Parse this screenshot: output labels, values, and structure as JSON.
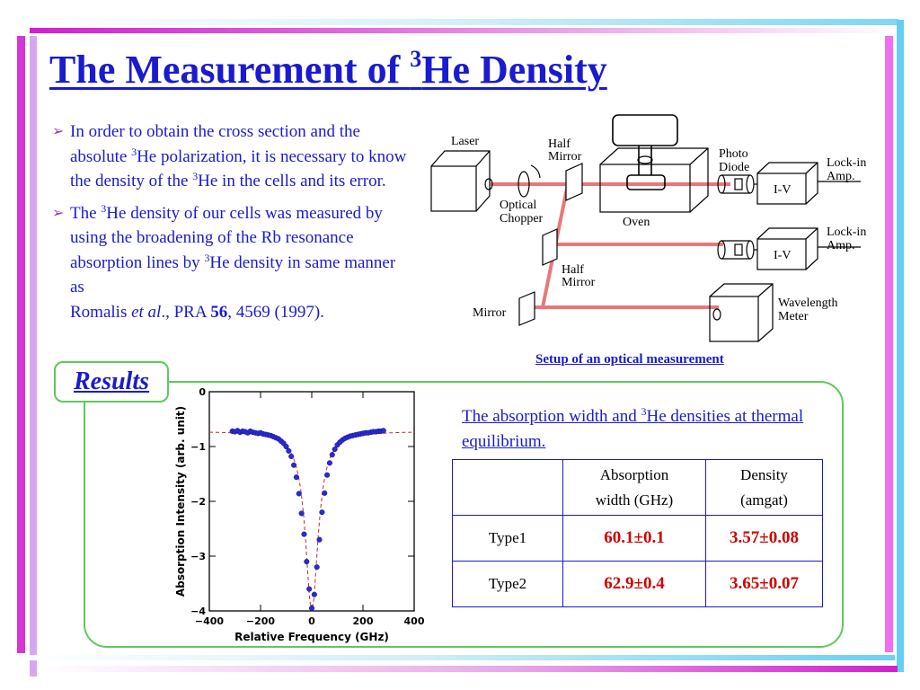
{
  "title": {
    "pre": "The Measurement of ",
    "sup": "3",
    "post": "He Density"
  },
  "bullets": [
    {
      "marker": "➢",
      "parts": [
        "In order to obtain the cross section and the absolute ",
        "3",
        "He polarization, it is necessary to know the density of the ",
        "3",
        "He in the cells and its error."
      ]
    },
    {
      "marker": "➢",
      "parts": [
        "The ",
        "3",
        "He density of our cells was measured by using the broadening of the Rb resonance absorption lines by ",
        "3",
        "He density in same manner as",
        "Romalis ",
        "et al",
        "., PRA ",
        "56",
        ", 4569 (1997)."
      ]
    }
  ],
  "diagram": {
    "caption": "Setup of an optical measurement",
    "labels": {
      "laser": "Laser",
      "half_mirror_1a": "Half",
      "half_mirror_1b": "Mirror",
      "optical_chopper_a": "Optical",
      "optical_chopper_b": "Chopper",
      "oven": "Oven",
      "photo_diode_a": "Photo",
      "photo_diode_b": "Diode",
      "iv_1": "I-V",
      "iv_2": "I-V",
      "lockin_1a": "Lock-in",
      "lockin_1b": "Amp.",
      "lockin_2a": "Lock-in",
      "lockin_2b": "Amp.",
      "half_mirror_2a": "Half",
      "half_mirror_2b": "Mirror",
      "mirror": "Mirror",
      "wavelength_a": "Wavelength",
      "wavelength_b": "Meter"
    }
  },
  "results": {
    "label": "Results"
  },
  "chart_data": {
    "type": "scatter",
    "title": "",
    "xlabel": "Relative Frequency (GHz)",
    "ylabel": "Absorption Intensity (arb. unit)",
    "xlim": [
      -400,
      400
    ],
    "ylim": [
      -4,
      0
    ],
    "xticks": [
      -400,
      -200,
      0,
      200,
      400
    ],
    "yticks": [
      0,
      -1,
      -2,
      -3,
      -4
    ],
    "xtick_labels": [
      "−400",
      "−200",
      "0",
      "200",
      "400"
    ],
    "ytick_labels": [
      "0",
      "−1",
      "−2",
      "−3",
      "−4"
    ],
    "fit": {
      "baseline": -0.72,
      "depth": 3.28,
      "center": 0,
      "half_width": 30,
      "xrange": [
        -400,
        400
      ]
    },
    "points": [
      [
        -310,
        -0.72
      ],
      [
        -300,
        -0.73
      ],
      [
        -290,
        -0.71
      ],
      [
        -280,
        -0.74
      ],
      [
        -270,
        -0.72
      ],
      [
        -260,
        -0.73
      ],
      [
        -250,
        -0.75
      ],
      [
        -240,
        -0.72
      ],
      [
        -230,
        -0.74
      ],
      [
        -220,
        -0.75
      ],
      [
        -210,
        -0.76
      ],
      [
        -200,
        -0.75
      ],
      [
        -190,
        -0.77
      ],
      [
        -180,
        -0.78
      ],
      [
        -170,
        -0.79
      ],
      [
        -160,
        -0.8
      ],
      [
        -150,
        -0.82
      ],
      [
        -140,
        -0.84
      ],
      [
        -130,
        -0.86
      ],
      [
        -120,
        -0.9
      ],
      [
        -110,
        -0.94
      ],
      [
        -100,
        -1.0
      ],
      [
        -90,
        -1.08
      ],
      [
        -80,
        -1.18
      ],
      [
        -70,
        -1.34
      ],
      [
        -60,
        -1.56
      ],
      [
        -50,
        -1.86
      ],
      [
        -40,
        -2.22
      ],
      [
        -30,
        -2.6
      ],
      [
        -20,
        -3.1
      ],
      [
        -10,
        -3.6
      ],
      [
        0,
        -3.95
      ],
      [
        10,
        -3.7
      ],
      [
        20,
        -3.2
      ],
      [
        30,
        -2.7
      ],
      [
        40,
        -2.2
      ],
      [
        50,
        -1.85
      ],
      [
        60,
        -1.52
      ],
      [
        70,
        -1.3
      ],
      [
        80,
        -1.15
      ],
      [
        90,
        -1.05
      ],
      [
        100,
        -0.97
      ],
      [
        110,
        -0.92
      ],
      [
        120,
        -0.88
      ],
      [
        130,
        -0.85
      ],
      [
        140,
        -0.83
      ],
      [
        150,
        -0.81
      ],
      [
        160,
        -0.8
      ],
      [
        170,
        -0.79
      ],
      [
        180,
        -0.78
      ],
      [
        190,
        -0.77
      ],
      [
        200,
        -0.76
      ],
      [
        210,
        -0.75
      ],
      [
        220,
        -0.75
      ],
      [
        230,
        -0.74
      ],
      [
        240,
        -0.73
      ],
      [
        250,
        -0.73
      ],
      [
        260,
        -0.72
      ],
      [
        270,
        -0.72
      ],
      [
        280,
        -0.71
      ]
    ]
  },
  "table": {
    "caption_parts": [
      "The absorption width and ",
      "3",
      "He densities at thermal equilibrium."
    ],
    "header": {
      "col1_line1": "Absorption",
      "col1_line2": "width (GHz)",
      "col2_line1": "Density",
      "col2_line2": "(amgat)"
    },
    "rows": [
      {
        "label": "Type1",
        "width": "60.1±0.1",
        "density": "3.57±0.08"
      },
      {
        "label": "Type2",
        "width": "62.9±0.4",
        "density": "3.65±0.07"
      }
    ]
  },
  "colors": {
    "title": "#1a1ad0",
    "accent_magenta": "#d040d0",
    "accent_cyan": "#60d0f0",
    "panel_green": "#5dc95d",
    "beam": "#e87878",
    "table_values": "#d00000"
  }
}
